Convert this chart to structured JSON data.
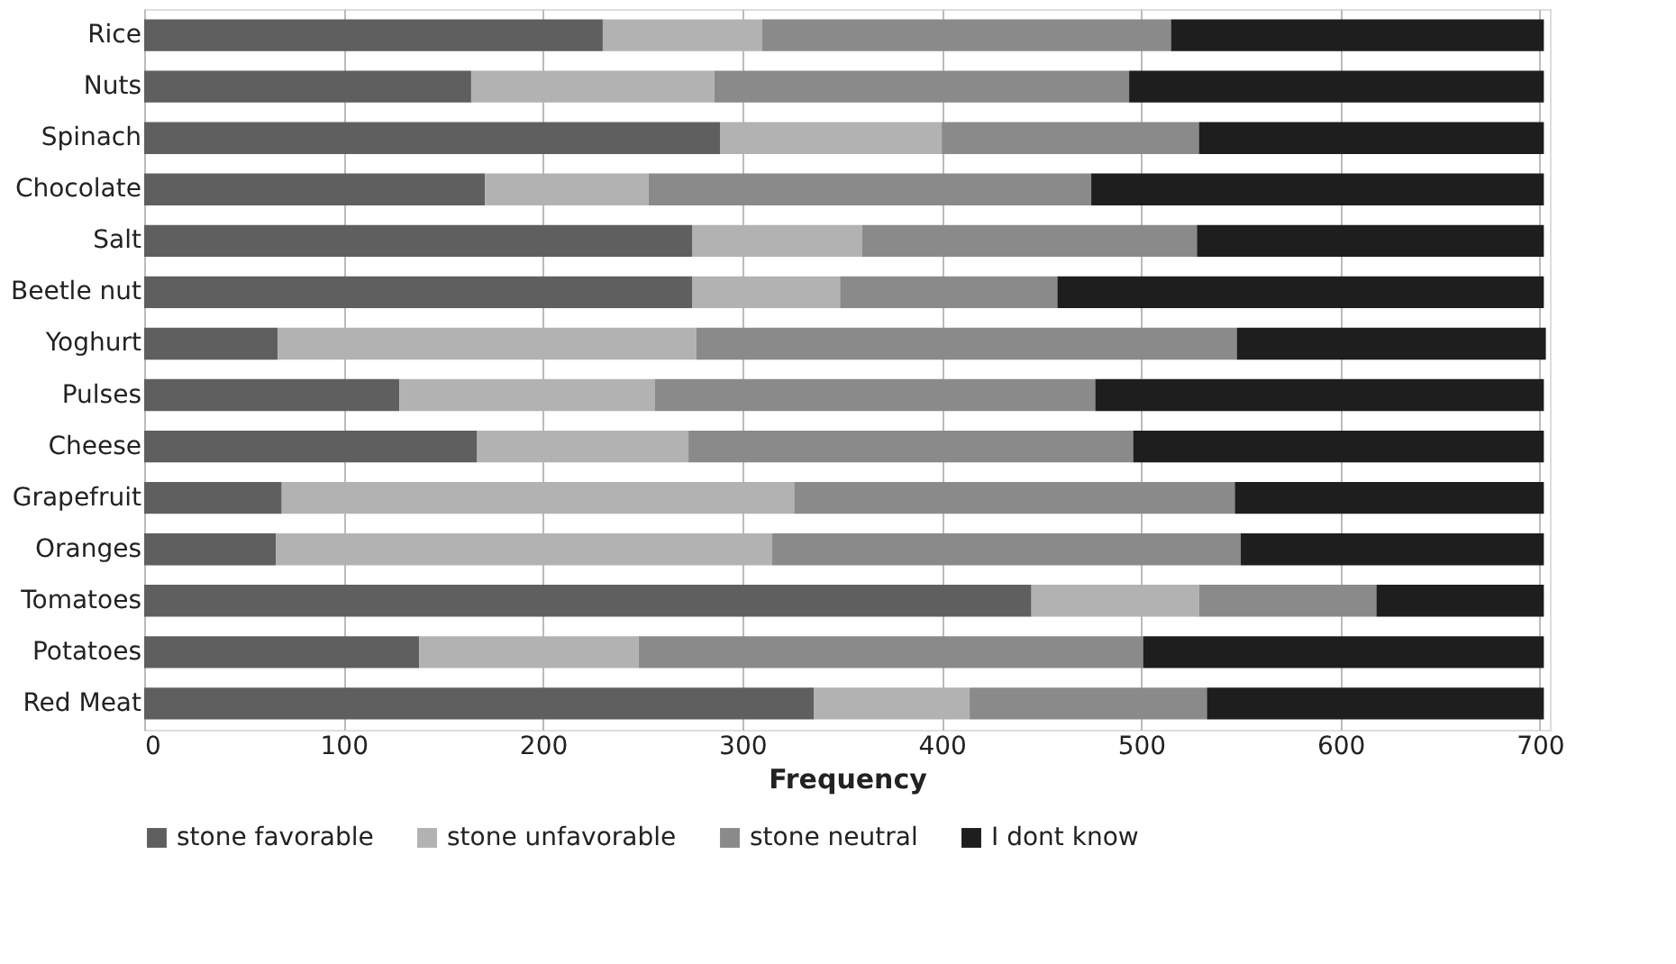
{
  "chart_data": {
    "type": "bar",
    "orientation": "horizontal",
    "stacked": true,
    "xlabel": "Frequency",
    "categories": [
      "Rice",
      "Nuts",
      "Spinach",
      "Chocolate",
      "Salt",
      "Beetle nut",
      "Yoghurt",
      "Pulses",
      "Cheese",
      "Grapefruit",
      "Oranges",
      "Tomatoes",
      "Potatoes",
      "Red Meat"
    ],
    "series": [
      {
        "name": "stone favorable",
        "color": "#5f5f5f",
        "values": [
          230,
          164,
          289,
          171,
          275,
          275,
          67,
          128,
          167,
          69,
          66,
          445,
          138,
          336
        ]
      },
      {
        "name": "stone unfavorable",
        "color": "#b2b2b2",
        "values": [
          80,
          122,
          111,
          82,
          85,
          74,
          210,
          128,
          106,
          257,
          249,
          84,
          110,
          78
        ]
      },
      {
        "name": "stone neutral",
        "color": "#8a8a8a",
        "values": [
          205,
          208,
          129,
          222,
          168,
          109,
          271,
          221,
          223,
          221,
          235,
          89,
          253,
          119
        ]
      },
      {
        "name": "I dont know",
        "color": "#1e1e1e",
        "values": [
          187,
          208,
          173,
          227,
          174,
          244,
          155,
          225,
          206,
          155,
          152,
          84,
          201,
          169
        ]
      }
    ],
    "xlim": [
      0,
      705
    ],
    "xticks": [
      0,
      100,
      200,
      300,
      400,
      500,
      600,
      700
    ],
    "grid": "x",
    "legend": "bottom"
  }
}
